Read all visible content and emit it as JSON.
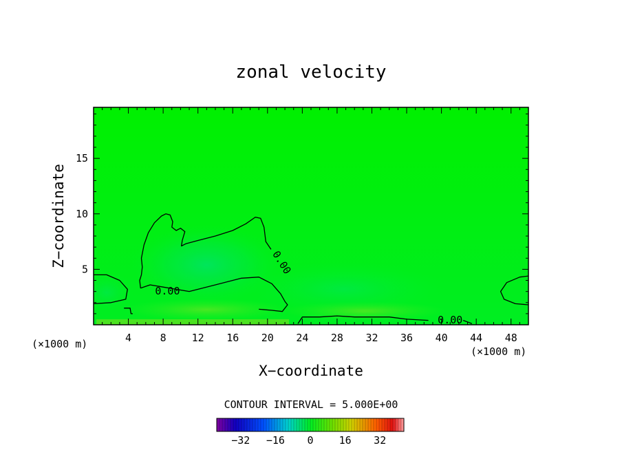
{
  "chart_data": {
    "type": "heatmap",
    "title": "zonal velocity",
    "xlabel": "X−coordinate",
    "ylabel": "Z−coordinate",
    "x_unit_left": "(×1000 m)",
    "x_unit_right": "(×1000 m)",
    "xlim": [
      0,
      50
    ],
    "ylim": [
      0,
      19.6
    ],
    "x_ticks": [
      4,
      8,
      12,
      16,
      20,
      24,
      28,
      32,
      36,
      40,
      44,
      48
    ],
    "y_ticks": [
      5,
      10,
      15
    ],
    "contour_interval_text": "CONTOUR INTERVAL = 5.000E+00",
    "contour_labels": [
      {
        "text": "0.00",
        "x": 8.5,
        "z": 3.0
      },
      {
        "text": "0.00",
        "x": 21.6,
        "z": 5.6
      },
      {
        "text": "0.00",
        "x": 41.0,
        "z": 0.4
      }
    ],
    "contours_zero": [
      [
        [
          0,
          4.5
        ],
        [
          1.5,
          4.5
        ],
        [
          3,
          4.0
        ],
        [
          3.9,
          3.2
        ],
        [
          3.7,
          2.3
        ],
        [
          2,
          2.0
        ],
        [
          0,
          1.9
        ]
      ],
      [
        [
          5.4,
          3.3
        ],
        [
          6.5,
          3.6
        ],
        [
          8,
          3.4
        ],
        [
          11,
          3.0
        ],
        [
          14,
          3.6
        ],
        [
          17,
          4.2
        ],
        [
          19,
          4.3
        ],
        [
          20.5,
          3.7
        ],
        [
          21.5,
          2.8
        ],
        [
          22,
          2.1
        ],
        [
          22.3,
          1.8
        ],
        [
          21.7,
          1.2
        ],
        [
          20.5,
          1.3
        ],
        [
          19,
          1.4
        ]
      ],
      [
        [
          5.4,
          3.3
        ],
        [
          5.3,
          4.0
        ],
        [
          5.5,
          4.5
        ],
        [
          5.6,
          5.2
        ],
        [
          5.5,
          6.0
        ],
        [
          5.8,
          7.2
        ],
        [
          6.3,
          8.3
        ],
        [
          7.0,
          9.2
        ],
        [
          7.8,
          9.8
        ],
        [
          8.3,
          10.0
        ],
        [
          8.8,
          9.9
        ],
        [
          9.1,
          9.3
        ],
        [
          9.0,
          8.8
        ],
        [
          9.5,
          8.5
        ],
        [
          10.0,
          8.7
        ],
        [
          10.5,
          8.4
        ],
        [
          10.2,
          7.6
        ],
        [
          10.1,
          7.1
        ],
        [
          10.6,
          7.3
        ],
        [
          12,
          7.6
        ],
        [
          14,
          8.0
        ],
        [
          16,
          8.5
        ],
        [
          17.5,
          9.1
        ],
        [
          18.6,
          9.7
        ],
        [
          19.2,
          9.6
        ],
        [
          19.6,
          8.8
        ],
        [
          19.8,
          7.5
        ],
        [
          20.4,
          6.8
        ]
      ],
      [
        [
          3.5,
          1.5
        ],
        [
          4.2,
          1.5
        ],
        [
          4.3,
          1.0
        ],
        [
          4.5,
          1.0
        ]
      ],
      [
        [
          23.5,
          0.1
        ],
        [
          24,
          0.7
        ],
        [
          26,
          0.7
        ],
        [
          28,
          0.8
        ],
        [
          30,
          0.7
        ],
        [
          34,
          0.7
        ],
        [
          36,
          0.5
        ],
        [
          38.5,
          0.4
        ]
      ],
      [
        [
          43.5,
          0.1
        ],
        [
          43.2,
          0.2
        ],
        [
          42.5,
          0.4
        ]
      ],
      [
        [
          50,
          4.4
        ],
        [
          49,
          4.3
        ],
        [
          47.5,
          3.8
        ],
        [
          46.8,
          3.0
        ],
        [
          47.2,
          2.3
        ],
        [
          48.5,
          1.9
        ],
        [
          50,
          1.8
        ]
      ]
    ],
    "colorbar": {
      "vmin": -43,
      "vmax": 43,
      "ticks": [
        -32,
        -16,
        0,
        16,
        32
      ],
      "tick_labels": [
        "−32",
        "−16",
        "0",
        "16",
        "32"
      ]
    },
    "colors": {
      "field_main": "#00ee22",
      "field_bright": "#00f000",
      "neg_weak": "#00e85a",
      "pos_weak": "#66e622",
      "contour": "#000000"
    }
  }
}
